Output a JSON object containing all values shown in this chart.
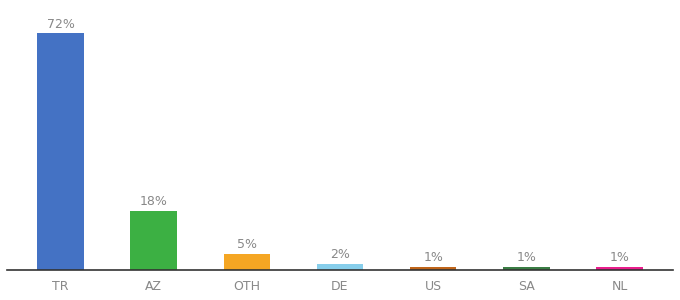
{
  "categories": [
    "TR",
    "AZ",
    "OTH",
    "DE",
    "US",
    "SA",
    "NL"
  ],
  "values": [
    72,
    18,
    5,
    2,
    1,
    1,
    1
  ],
  "bar_colors": [
    "#4472c4",
    "#3cb043",
    "#f5a623",
    "#87ceeb",
    "#c0651a",
    "#3a7d44",
    "#e91e8c"
  ],
  "labels": [
    "72%",
    "18%",
    "5%",
    "2%",
    "1%",
    "1%",
    "1%"
  ],
  "background_color": "#ffffff",
  "label_color": "#888888",
  "label_fontsize": 9,
  "tick_fontsize": 9,
  "ylim": [
    0,
    80
  ]
}
